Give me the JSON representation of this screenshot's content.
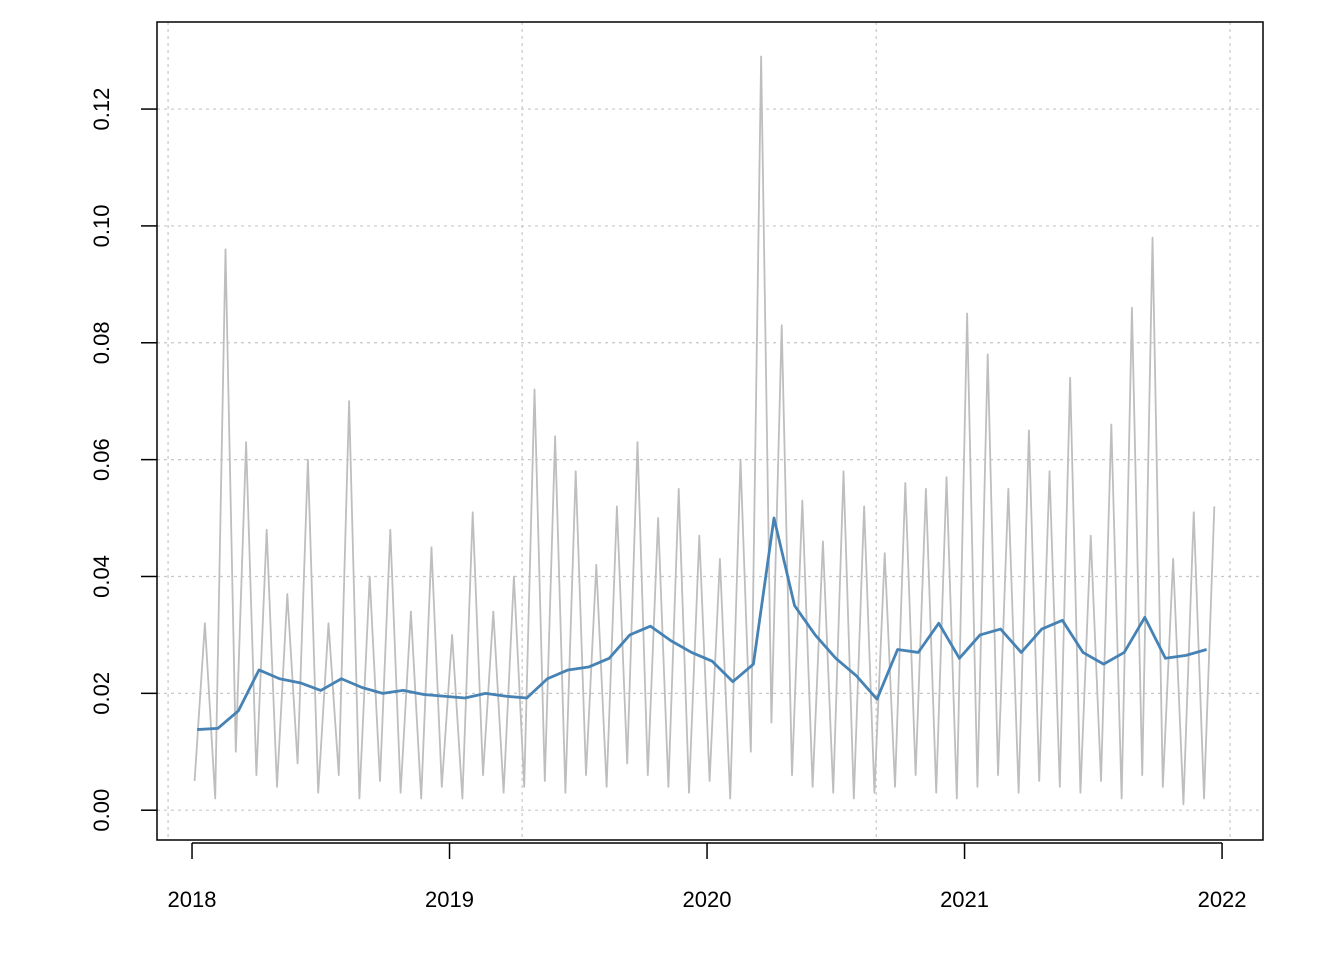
{
  "chart_data": {
    "type": "line",
    "xlim": [
      2017.864,
      2022.159
    ],
    "ylim": [
      -0.0051,
      0.1349
    ],
    "xticks": [
      2018,
      2019,
      2020,
      2021,
      2022
    ],
    "yticks": [
      {
        "value": 0,
        "label": "0.00"
      },
      0.02,
      0.04,
      0.06,
      0.08,
      {
        "value": 0.1,
        "label": "0.10"
      },
      0.12
    ],
    "grid": true,
    "xgrid": [
      2017.907,
      2019.282,
      2020.657,
      2022.031
    ],
    "series": [
      {
        "color": "#bebebe",
        "x": [
          2018.01,
          2018.05,
          2018.09,
          2018.13,
          2018.17,
          2018.21,
          2018.25,
          2018.29,
          2018.33,
          2018.37,
          2018.41,
          2018.45,
          2018.49,
          2018.53,
          2018.57,
          2018.61,
          2018.65,
          2018.69,
          2018.73,
          2018.77,
          2018.81,
          2018.85,
          2018.89,
          2018.93,
          2018.97,
          2019.01,
          2019.05,
          2019.09,
          2019.13,
          2019.17,
          2019.21,
          2019.25,
          2019.29,
          2019.33,
          2019.37,
          2019.41,
          2019.45,
          2019.49,
          2019.53,
          2019.57,
          2019.61,
          2019.65,
          2019.69,
          2019.73,
          2019.77,
          2019.81,
          2019.85,
          2019.89,
          2019.93,
          2019.97,
          2020.01,
          2020.05,
          2020.09,
          2020.13,
          2020.17,
          2020.21,
          2020.25,
          2020.29,
          2020.33,
          2020.37,
          2020.41,
          2020.45,
          2020.49,
          2020.53,
          2020.57,
          2020.61,
          2020.65,
          2020.69,
          2020.73,
          2020.77,
          2020.81,
          2020.85,
          2020.89,
          2020.93,
          2020.97,
          2021.01,
          2021.05,
          2021.09,
          2021.13,
          2021.17,
          2021.21,
          2021.25,
          2021.29,
          2021.33,
          2021.37,
          2021.41,
          2021.45,
          2021.49,
          2021.53,
          2021.57,
          2021.61,
          2021.65,
          2021.69,
          2021.73,
          2021.77,
          2021.81,
          2021.85,
          2021.89,
          2021.93,
          2021.97
        ],
        "values": [
          0.005,
          0.032,
          0.002,
          0.096,
          0.01,
          0.063,
          0.006,
          0.048,
          0.004,
          0.037,
          0.008,
          0.06,
          0.003,
          0.032,
          0.006,
          0.07,
          0.002,
          0.04,
          0.005,
          0.048,
          0.003,
          0.034,
          0.002,
          0.045,
          0.004,
          0.03,
          0.002,
          0.051,
          0.006,
          0.034,
          0.003,
          0.04,
          0.004,
          0.072,
          0.005,
          0.064,
          0.003,
          0.058,
          0.006,
          0.042,
          0.004,
          0.052,
          0.008,
          0.063,
          0.006,
          0.05,
          0.004,
          0.055,
          0.003,
          0.047,
          0.005,
          0.043,
          0.002,
          0.06,
          0.01,
          0.129,
          0.015,
          0.083,
          0.006,
          0.053,
          0.004,
          0.046,
          0.003,
          0.058,
          0.002,
          0.052,
          0.003,
          0.044,
          0.004,
          0.056,
          0.006,
          0.055,
          0.003,
          0.057,
          0.002,
          0.085,
          0.004,
          0.078,
          0.006,
          0.055,
          0.003,
          0.065,
          0.005,
          0.058,
          0.004,
          0.074,
          0.003,
          0.047,
          0.005,
          0.066,
          0.002,
          0.086,
          0.006,
          0.098,
          0.004,
          0.043,
          0.001,
          0.051,
          0.002,
          0.052
        ]
      },
      {
        "color": "#4682b4",
        "x": [
          2018.02,
          2018.1,
          2018.18,
          2018.26,
          2018.34,
          2018.42,
          2018.5,
          2018.58,
          2018.66,
          2018.74,
          2018.82,
          2018.9,
          2018.98,
          2019.06,
          2019.14,
          2019.22,
          2019.3,
          2019.38,
          2019.46,
          2019.54,
          2019.62,
          2019.7,
          2019.78,
          2019.86,
          2019.94,
          2020.02,
          2020.1,
          2020.18,
          2020.26,
          2020.34,
          2020.42,
          2020.5,
          2020.58,
          2020.66,
          2020.74,
          2020.82,
          2020.9,
          2020.98,
          2021.06,
          2021.14,
          2021.22,
          2021.3,
          2021.38,
          2021.46,
          2021.54,
          2021.62,
          2021.7,
          2021.78,
          2021.86,
          2021.94
        ],
        "values": [
          0.0138,
          0.014,
          0.017,
          0.024,
          0.0225,
          0.0218,
          0.0205,
          0.0225,
          0.021,
          0.02,
          0.0205,
          0.0198,
          0.0195,
          0.0192,
          0.02,
          0.0195,
          0.0192,
          0.0225,
          0.024,
          0.0245,
          0.026,
          0.03,
          0.0315,
          0.029,
          0.027,
          0.0255,
          0.022,
          0.025,
          0.05,
          0.035,
          0.03,
          0.026,
          0.023,
          0.019,
          0.0275,
          0.027,
          0.032,
          0.026,
          0.03,
          0.031,
          0.027,
          0.031,
          0.0325,
          0.027,
          0.025,
          0.027,
          0.033,
          0.026,
          0.0265,
          0.0275
        ]
      }
    ]
  }
}
